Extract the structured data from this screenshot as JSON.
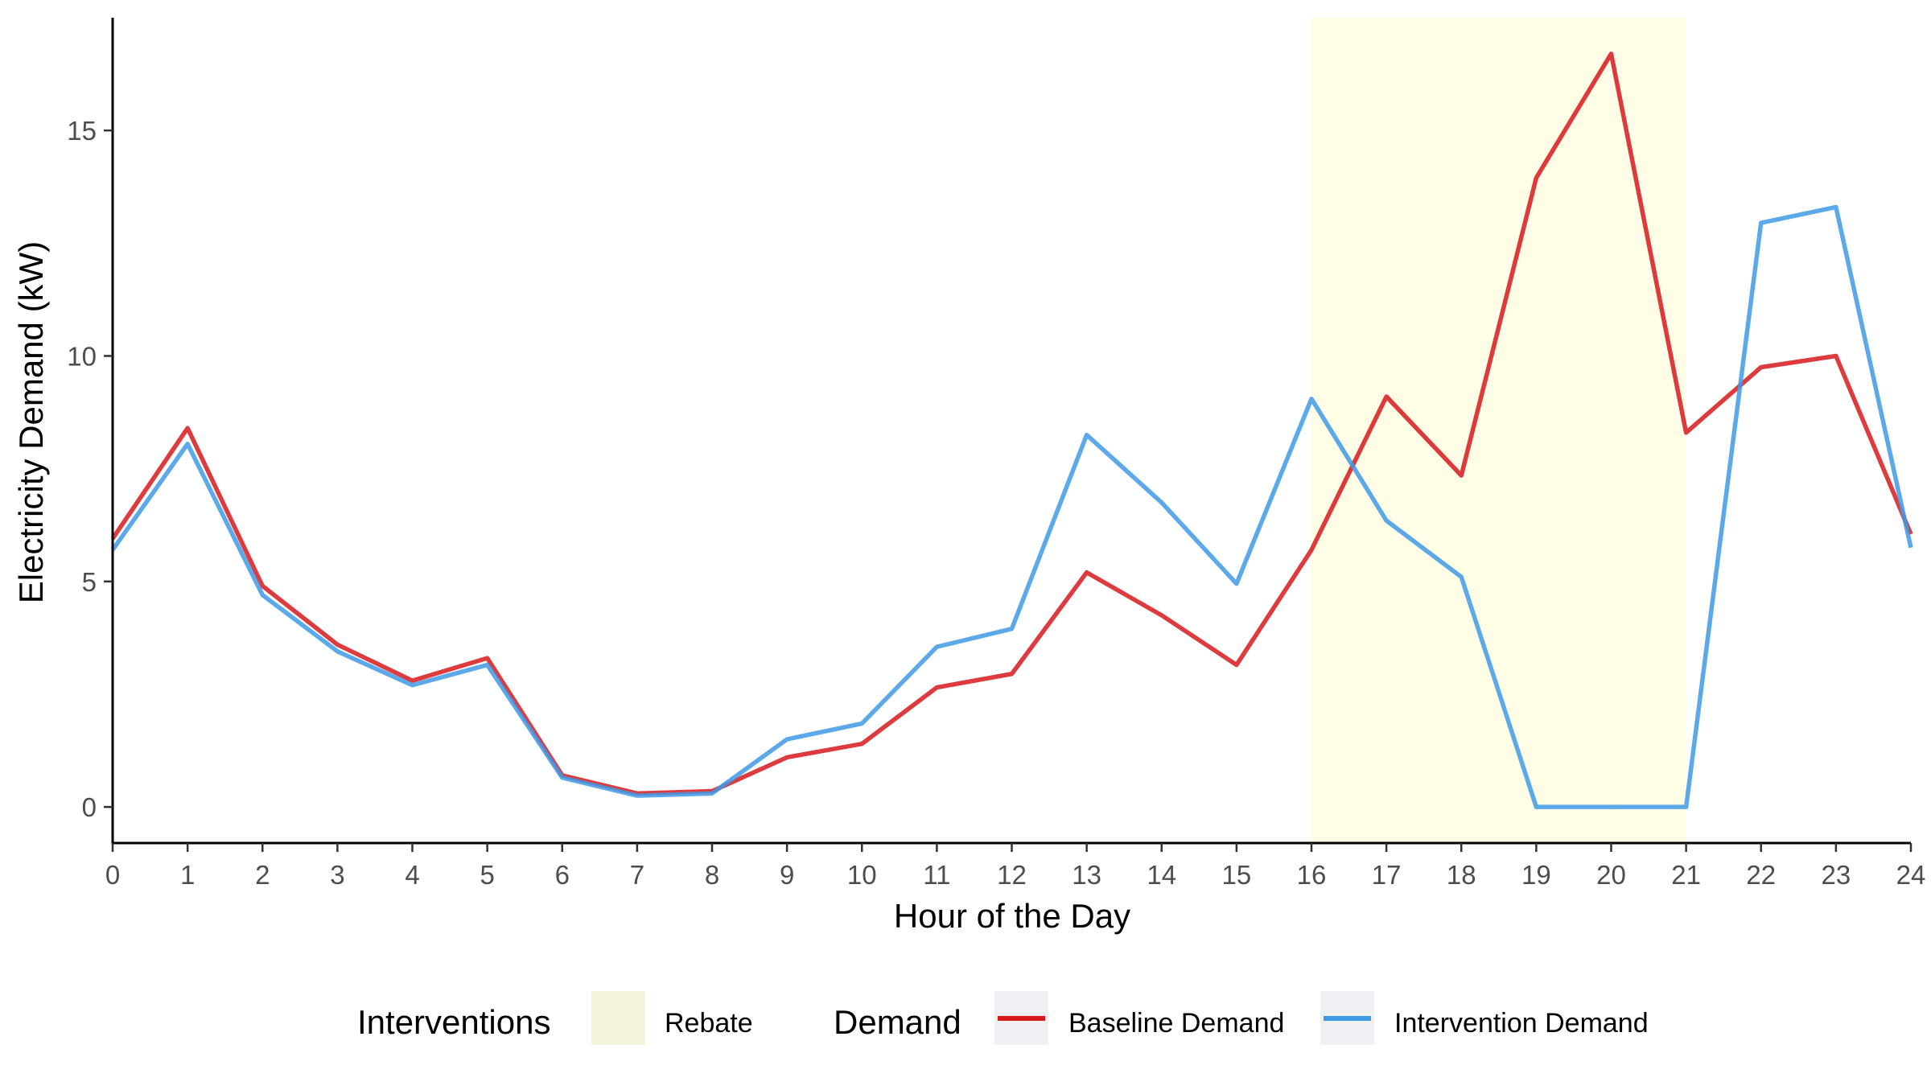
{
  "chart_data": {
    "type": "line",
    "xlabel": "Hour of the Day",
    "ylabel": "Electricity Demand (kW)",
    "xlim": [
      0,
      24
    ],
    "ylim": [
      -0.8,
      17.5
    ],
    "x_ticks": [
      0,
      1,
      2,
      3,
      4,
      5,
      6,
      7,
      8,
      9,
      10,
      11,
      12,
      13,
      14,
      15,
      16,
      17,
      18,
      19,
      20,
      21,
      22,
      23,
      24
    ],
    "y_ticks": [
      0,
      5,
      10,
      15
    ],
    "grid": false,
    "legend_position": "bottom",
    "x": [
      0,
      1,
      2,
      3,
      4,
      5,
      6,
      7,
      8,
      9,
      10,
      11,
      12,
      13,
      14,
      15,
      16,
      17,
      18,
      19,
      20,
      21,
      22,
      23,
      24
    ],
    "series": [
      {
        "name": "Baseline Demand",
        "color": "#d7191c",
        "values": [
          5.95,
          8.4,
          4.9,
          3.6,
          2.8,
          3.3,
          0.7,
          0.3,
          0.35,
          1.1,
          1.4,
          2.65,
          2.95,
          5.2,
          4.25,
          3.15,
          5.7,
          9.1,
          7.35,
          13.95,
          16.7,
          8.3,
          9.75,
          10.0,
          6.05
        ]
      },
      {
        "name": "Intervention Demand",
        "color": "#3f9ae6",
        "values": [
          5.7,
          8.05,
          4.7,
          3.45,
          2.7,
          3.15,
          0.65,
          0.25,
          0.3,
          1.5,
          1.85,
          3.55,
          3.95,
          8.25,
          6.75,
          4.95,
          9.05,
          6.35,
          5.1,
          0.0,
          0.0,
          0.0,
          12.95,
          13.3,
          5.75
        ]
      }
    ],
    "shaded_regions": [
      {
        "name": "Rebate",
        "x_start": 16,
        "x_end": 21,
        "color": "#fffde6"
      }
    ],
    "legend": {
      "interventions_title": "Interventions",
      "interventions_items": [
        {
          "label": "Rebate",
          "color": "#f5f3da"
        }
      ],
      "demand_title": "Demand",
      "demand_items": [
        {
          "label": "Baseline Demand",
          "color": "#d7191c"
        },
        {
          "label": "Intervention Demand",
          "color": "#3f9ae6"
        }
      ]
    }
  }
}
